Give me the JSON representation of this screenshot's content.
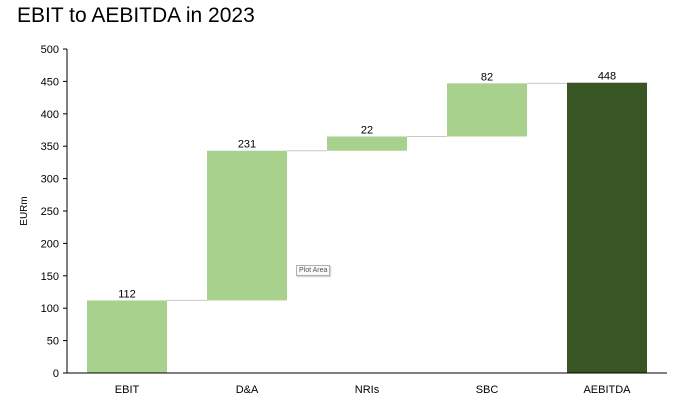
{
  "title": "EBIT to AEBITDA in 2023",
  "plot_area_tooltip": "Plot Area",
  "colors": {
    "increase": "#a9d18e",
    "total": "#375623",
    "connector": "#c8c8c8"
  },
  "chart_data": {
    "type": "bar",
    "subtype": "waterfall",
    "title": "EBIT to AEBITDA in 2023",
    "xlabel": "",
    "ylabel": "EURm",
    "ylim": [
      0,
      500
    ],
    "yticks": [
      0,
      50,
      100,
      150,
      200,
      250,
      300,
      350,
      400,
      450,
      500
    ],
    "categories": [
      "EBIT",
      "D&A",
      "NRIs",
      "SBC",
      "AEBITDA"
    ],
    "values": [
      112,
      231,
      22,
      82,
      448
    ],
    "bar_types": [
      "start",
      "increase",
      "increase",
      "increase",
      "total"
    ],
    "data_labels": [
      "112",
      "231",
      "22",
      "82",
      "448"
    ],
    "grid": false,
    "legend": "none"
  }
}
